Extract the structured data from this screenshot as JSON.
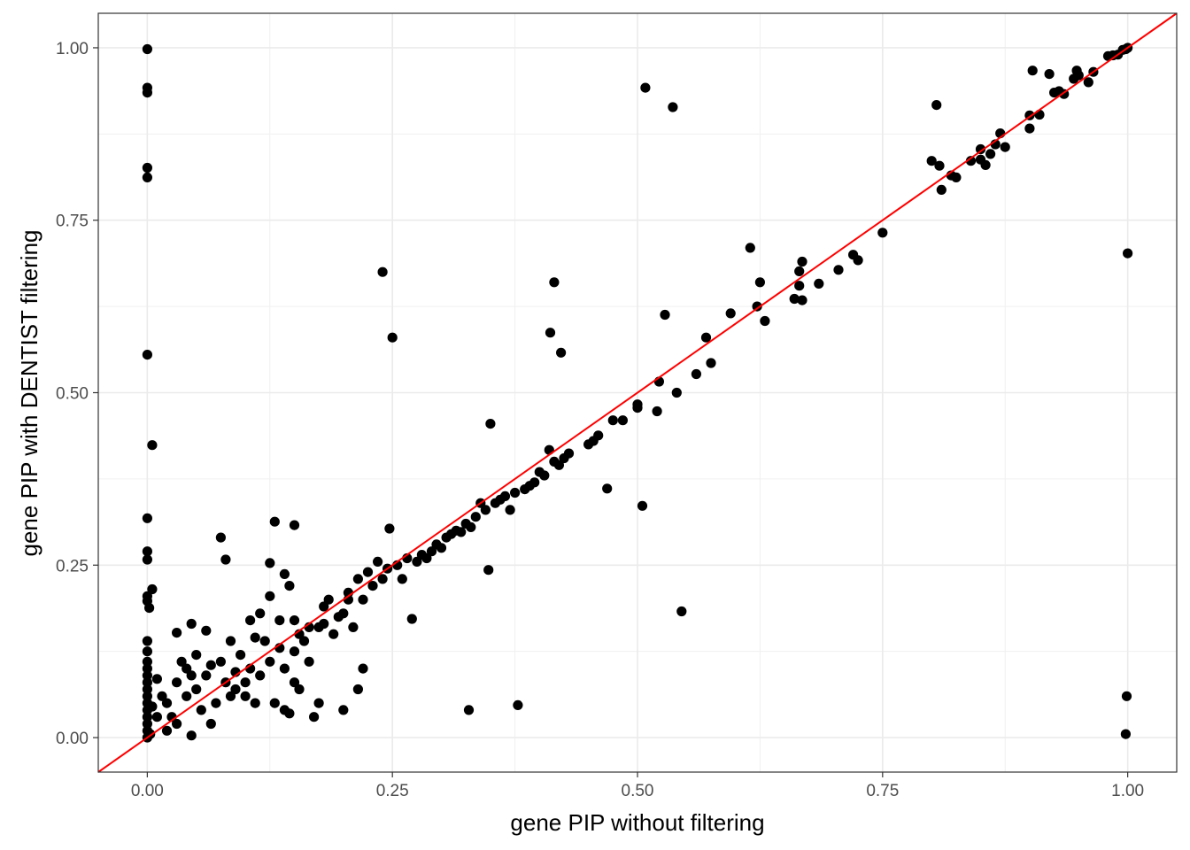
{
  "chart_data": {
    "type": "scatter",
    "title": "",
    "xlabel": "gene PIP without filtering",
    "ylabel": "gene PIP with DENTIST filtering",
    "xlim": [
      -0.05,
      1.05
    ],
    "ylim": [
      -0.05,
      1.05
    ],
    "x_ticks": [
      "0.00",
      "0.25",
      "0.50",
      "0.75",
      "1.00"
    ],
    "y_ticks": [
      "0.00",
      "0.25",
      "0.50",
      "0.75",
      "1.00"
    ],
    "grid": true,
    "reference_line": {
      "type": "identity",
      "color": "#ff0000"
    },
    "point_color": "#000000",
    "points": [
      [
        0.0,
        0.998
      ],
      [
        0.0,
        0.942
      ],
      [
        0.0,
        0.935
      ],
      [
        0.0,
        0.826
      ],
      [
        0.0,
        0.812
      ],
      [
        0.0,
        0.555
      ],
      [
        0.005,
        0.424
      ],
      [
        0.0,
        0.318
      ],
      [
        0.0,
        0.27
      ],
      [
        0.0,
        0.258
      ],
      [
        0.005,
        0.215
      ],
      [
        0.0,
        0.205
      ],
      [
        0.0,
        0.198
      ],
      [
        0.002,
        0.188
      ],
      [
        0.0,
        0.14
      ],
      [
        0.0,
        0.125
      ],
      [
        0.0,
        0.11
      ],
      [
        0.0,
        0.1
      ],
      [
        0.0,
        0.09
      ],
      [
        0.0,
        0.08
      ],
      [
        0.0,
        0.07
      ],
      [
        0.0,
        0.06
      ],
      [
        0.0,
        0.05
      ],
      [
        0.0,
        0.04
      ],
      [
        0.0,
        0.03
      ],
      [
        0.0,
        0.02
      ],
      [
        0.0,
        0.01
      ],
      [
        0.0,
        0.0
      ],
      [
        0.003,
        0.005
      ],
      [
        0.005,
        0.045
      ],
      [
        0.01,
        0.03
      ],
      [
        0.01,
        0.085
      ],
      [
        0.015,
        0.06
      ],
      [
        0.02,
        0.01
      ],
      [
        0.02,
        0.05
      ],
      [
        0.025,
        0.03
      ],
      [
        0.03,
        0.152
      ],
      [
        0.03,
        0.02
      ],
      [
        0.03,
        0.08
      ],
      [
        0.035,
        0.11
      ],
      [
        0.04,
        0.1
      ],
      [
        0.04,
        0.06
      ],
      [
        0.045,
        0.003
      ],
      [
        0.045,
        0.09
      ],
      [
        0.045,
        0.165
      ],
      [
        0.05,
        0.12
      ],
      [
        0.05,
        0.07
      ],
      [
        0.055,
        0.04
      ],
      [
        0.06,
        0.155
      ],
      [
        0.06,
        0.09
      ],
      [
        0.065,
        0.02
      ],
      [
        0.065,
        0.105
      ],
      [
        0.07,
        0.05
      ],
      [
        0.075,
        0.29
      ],
      [
        0.075,
        0.11
      ],
      [
        0.08,
        0.258
      ],
      [
        0.08,
        0.08
      ],
      [
        0.085,
        0.14
      ],
      [
        0.085,
        0.06
      ],
      [
        0.09,
        0.095
      ],
      [
        0.09,
        0.07
      ],
      [
        0.095,
        0.12
      ],
      [
        0.1,
        0.08
      ],
      [
        0.1,
        0.06
      ],
      [
        0.105,
        0.1
      ],
      [
        0.105,
        0.17
      ],
      [
        0.11,
        0.145
      ],
      [
        0.11,
        0.05
      ],
      [
        0.115,
        0.09
      ],
      [
        0.115,
        0.18
      ],
      [
        0.12,
        0.14
      ],
      [
        0.125,
        0.205
      ],
      [
        0.125,
        0.253
      ],
      [
        0.125,
        0.11
      ],
      [
        0.13,
        0.313
      ],
      [
        0.13,
        0.05
      ],
      [
        0.135,
        0.17
      ],
      [
        0.135,
        0.13
      ],
      [
        0.14,
        0.237
      ],
      [
        0.14,
        0.1
      ],
      [
        0.14,
        0.04
      ],
      [
        0.145,
        0.22
      ],
      [
        0.145,
        0.035
      ],
      [
        0.15,
        0.308
      ],
      [
        0.15,
        0.17
      ],
      [
        0.15,
        0.125
      ],
      [
        0.15,
        0.08
      ],
      [
        0.155,
        0.15
      ],
      [
        0.155,
        0.07
      ],
      [
        0.16,
        0.14
      ],
      [
        0.165,
        0.16
      ],
      [
        0.165,
        0.11
      ],
      [
        0.17,
        0.03
      ],
      [
        0.175,
        0.05
      ],
      [
        0.175,
        0.16
      ],
      [
        0.18,
        0.19
      ],
      [
        0.18,
        0.165
      ],
      [
        0.185,
        0.2
      ],
      [
        0.19,
        0.15
      ],
      [
        0.195,
        0.175
      ],
      [
        0.2,
        0.04
      ],
      [
        0.2,
        0.18
      ],
      [
        0.205,
        0.2
      ],
      [
        0.205,
        0.21
      ],
      [
        0.21,
        0.16
      ],
      [
        0.215,
        0.23
      ],
      [
        0.215,
        0.07
      ],
      [
        0.22,
        0.2
      ],
      [
        0.22,
        0.1
      ],
      [
        0.225,
        0.24
      ],
      [
        0.23,
        0.22
      ],
      [
        0.235,
        0.255
      ],
      [
        0.24,
        0.675
      ],
      [
        0.24,
        0.23
      ],
      [
        0.245,
        0.245
      ],
      [
        0.247,
        0.303
      ],
      [
        0.25,
        0.58
      ],
      [
        0.255,
        0.25
      ],
      [
        0.26,
        0.23
      ],
      [
        0.265,
        0.26
      ],
      [
        0.27,
        0.172
      ],
      [
        0.275,
        0.255
      ],
      [
        0.28,
        0.265
      ],
      [
        0.285,
        0.26
      ],
      [
        0.29,
        0.27
      ],
      [
        0.295,
        0.28
      ],
      [
        0.3,
        0.275
      ],
      [
        0.305,
        0.29
      ],
      [
        0.31,
        0.295
      ],
      [
        0.315,
        0.3
      ],
      [
        0.32,
        0.298
      ],
      [
        0.325,
        0.31
      ],
      [
        0.328,
        0.04
      ],
      [
        0.33,
        0.305
      ],
      [
        0.335,
        0.32
      ],
      [
        0.34,
        0.34
      ],
      [
        0.345,
        0.33
      ],
      [
        0.348,
        0.243
      ],
      [
        0.35,
        0.455
      ],
      [
        0.355,
        0.34
      ],
      [
        0.36,
        0.345
      ],
      [
        0.365,
        0.35
      ],
      [
        0.37,
        0.33
      ],
      [
        0.375,
        0.355
      ],
      [
        0.378,
        0.047
      ],
      [
        0.385,
        0.36
      ],
      [
        0.39,
        0.365
      ],
      [
        0.395,
        0.37
      ],
      [
        0.4,
        0.385
      ],
      [
        0.405,
        0.38
      ],
      [
        0.41,
        0.417
      ],
      [
        0.411,
        0.587
      ],
      [
        0.415,
        0.66
      ],
      [
        0.415,
        0.4
      ],
      [
        0.42,
        0.395
      ],
      [
        0.422,
        0.558
      ],
      [
        0.425,
        0.405
      ],
      [
        0.43,
        0.412
      ],
      [
        0.45,
        0.425
      ],
      [
        0.455,
        0.43
      ],
      [
        0.46,
        0.438
      ],
      [
        0.469,
        0.361
      ],
      [
        0.475,
        0.46
      ],
      [
        0.485,
        0.46
      ],
      [
        0.5,
        0.478
      ],
      [
        0.5,
        0.483
      ],
      [
        0.505,
        0.336
      ],
      [
        0.508,
        0.942
      ],
      [
        0.52,
        0.473
      ],
      [
        0.522,
        0.516
      ],
      [
        0.528,
        0.613
      ],
      [
        0.536,
        0.914
      ],
      [
        0.54,
        0.5
      ],
      [
        0.545,
        0.183
      ],
      [
        0.56,
        0.527
      ],
      [
        0.57,
        0.58
      ],
      [
        0.575,
        0.543
      ],
      [
        0.595,
        0.615
      ],
      [
        0.615,
        0.71
      ],
      [
        0.622,
        0.625
      ],
      [
        0.625,
        0.66
      ],
      [
        0.63,
        0.604
      ],
      [
        0.66,
        0.636
      ],
      [
        0.665,
        0.655
      ],
      [
        0.665,
        0.676
      ],
      [
        0.668,
        0.69
      ],
      [
        0.668,
        0.634
      ],
      [
        0.685,
        0.658
      ],
      [
        0.705,
        0.678
      ],
      [
        0.72,
        0.7
      ],
      [
        0.725,
        0.692
      ],
      [
        0.75,
        0.732
      ],
      [
        0.8,
        0.836
      ],
      [
        0.805,
        0.917
      ],
      [
        0.808,
        0.829
      ],
      [
        0.81,
        0.794
      ],
      [
        0.82,
        0.815
      ],
      [
        0.825,
        0.812
      ],
      [
        0.84,
        0.836
      ],
      [
        0.85,
        0.853
      ],
      [
        0.85,
        0.838
      ],
      [
        0.855,
        0.83
      ],
      [
        0.86,
        0.846
      ],
      [
        0.865,
        0.86
      ],
      [
        0.87,
        0.876
      ],
      [
        0.875,
        0.856
      ],
      [
        0.9,
        0.883
      ],
      [
        0.9,
        0.902
      ],
      [
        0.903,
        0.967
      ],
      [
        0.91,
        0.903
      ],
      [
        0.92,
        0.962
      ],
      [
        0.925,
        0.935
      ],
      [
        0.93,
        0.937
      ],
      [
        0.935,
        0.933
      ],
      [
        0.945,
        0.955
      ],
      [
        0.948,
        0.967
      ],
      [
        0.95,
        0.96
      ],
      [
        0.96,
        0.95
      ],
      [
        0.965,
        0.965
      ],
      [
        0.98,
        0.988
      ],
      [
        0.985,
        0.989
      ],
      [
        0.99,
        0.99
      ],
      [
        0.995,
        0.997
      ],
      [
        0.998,
        0.998
      ],
      [
        1.0,
        1.0
      ],
      [
        0.998,
        0.005
      ],
      [
        0.999,
        0.06
      ],
      [
        1.0,
        0.702
      ]
    ]
  }
}
